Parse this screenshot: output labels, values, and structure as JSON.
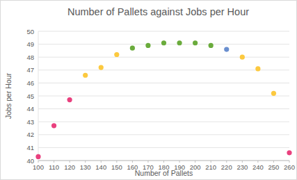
{
  "chart_data": {
    "type": "scatter",
    "title": "Number of Pallets against Jobs per Hour",
    "xlabel": "Number of Pallets",
    "ylabel": "Jobs per Hour",
    "x": [
      100,
      110,
      120,
      130,
      140,
      150,
      160,
      170,
      180,
      190,
      200,
      210,
      220,
      230,
      240,
      250,
      260
    ],
    "values": [
      40.3,
      42.7,
      44.7,
      46.6,
      47.2,
      48.2,
      48.7,
      48.9,
      49.1,
      49.1,
      49.1,
      48.9,
      48.6,
      48.0,
      47.1,
      45.2,
      40.6
    ],
    "colors": [
      "#e9407e",
      "#e9407e",
      "#e9407e",
      "#fcc93f",
      "#fcc93f",
      "#fcc93f",
      "#6aab3c",
      "#6aab3c",
      "#6aab3c",
      "#6aab3c",
      "#6aab3c",
      "#6aab3c",
      "#6a8fcf",
      "#fcc93f",
      "#fcc93f",
      "#fcc93f",
      "#e9407e"
    ],
    "xlim": [
      100,
      260
    ],
    "xticks": [
      100,
      110,
      120,
      130,
      140,
      150,
      160,
      170,
      180,
      190,
      200,
      210,
      220,
      230,
      240,
      250,
      260
    ],
    "ylim": [
      40,
      50
    ],
    "yticks": [
      40,
      41,
      42,
      43,
      44,
      45,
      46,
      47,
      48,
      49,
      50
    ],
    "grid": true,
    "marker": "circle"
  }
}
